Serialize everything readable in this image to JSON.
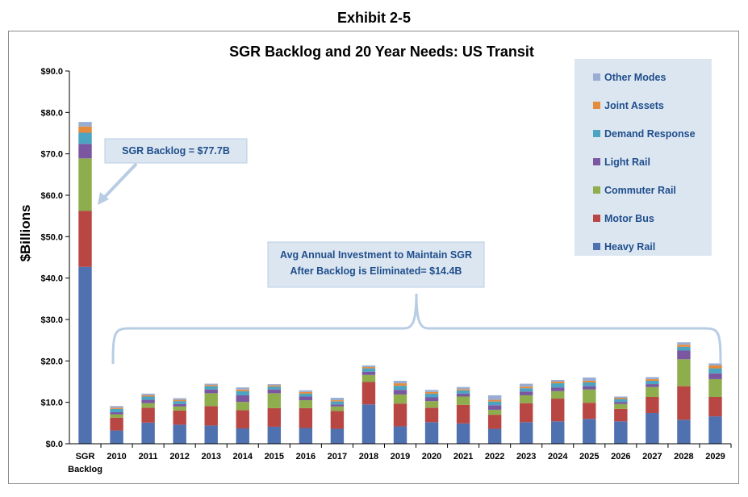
{
  "exhibit_label": "Exhibit 2-5",
  "chart_data": {
    "type": "bar",
    "stacked": true,
    "title": "SGR Backlog and 20 Year Needs: US Transit",
    "ylabel": "$Billions",
    "xlabel": "",
    "ylim": [
      0,
      90
    ],
    "yticks": [
      "$0.0",
      "$10.0",
      "$20.0",
      "$30.0",
      "$40.0",
      "$50.0",
      "$60.0",
      "$70.0",
      "$80.0",
      "$90.0"
    ],
    "grid": false,
    "legend_position": "top-right",
    "categories": [
      "SGR Backlog",
      "2010",
      "2011",
      "2012",
      "2013",
      "2014",
      "2015",
      "2016",
      "2017",
      "2018",
      "2019",
      "2020",
      "2021",
      "2022",
      "2023",
      "2024",
      "2025",
      "2026",
      "2027",
      "2028",
      "2029"
    ],
    "series": [
      {
        "name": "Heavy Rail",
        "color": "#4f71b0",
        "values": [
          42.7,
          3.2,
          5.1,
          4.6,
          4.4,
          3.7,
          4.1,
          3.8,
          3.6,
          9.5,
          4.2,
          5.2,
          4.9,
          3.6,
          5.2,
          5.4,
          6.0,
          5.4,
          7.4,
          5.8,
          6.6
        ]
      },
      {
        "name": "Motor Bus",
        "color": "#b84744",
        "values": [
          13.5,
          3.1,
          3.6,
          3.4,
          4.7,
          4.4,
          4.5,
          4.8,
          4.3,
          5.4,
          5.5,
          3.5,
          4.5,
          3.4,
          4.6,
          5.5,
          3.9,
          3.0,
          3.9,
          8.1,
          4.7
        ]
      },
      {
        "name": "Commuter Rail",
        "color": "#8ead4d",
        "values": [
          12.7,
          0.8,
          1.1,
          1.0,
          3.1,
          2.0,
          3.6,
          1.9,
          1.1,
          1.7,
          2.2,
          1.6,
          2.0,
          1.2,
          1.9,
          1.8,
          3.2,
          1.2,
          2.4,
          6.5,
          4.3
        ]
      },
      {
        "name": "Light Rail",
        "color": "#7a57a0",
        "values": [
          3.5,
          0.5,
          0.8,
          0.6,
          0.9,
          1.6,
          0.9,
          0.9,
          0.5,
          0.8,
          1.1,
          0.9,
          0.7,
          1.1,
          0.9,
          0.9,
          0.8,
          0.5,
          0.7,
          2.1,
          1.4
        ]
      },
      {
        "name": "Demand Response",
        "color": "#4ba4c1",
        "values": [
          2.7,
          0.8,
          0.8,
          0.7,
          0.8,
          1.0,
          0.7,
          0.7,
          0.7,
          0.8,
          1.0,
          0.9,
          0.8,
          0.9,
          0.8,
          1.0,
          0.9,
          0.7,
          0.8,
          0.9,
          1.2
        ]
      },
      {
        "name": "Joint Assets",
        "color": "#e58b3c",
        "values": [
          1.5,
          0.3,
          0.3,
          0.3,
          0.3,
          0.4,
          0.3,
          0.4,
          0.3,
          0.3,
          0.6,
          0.4,
          0.3,
          0.4,
          0.4,
          0.4,
          0.4,
          0.3,
          0.4,
          0.5,
          0.7
        ]
      },
      {
        "name": "Other Modes",
        "color": "#99add3",
        "values": [
          1.1,
          0.4,
          0.4,
          0.4,
          0.3,
          0.5,
          0.3,
          0.4,
          0.6,
          0.4,
          0.6,
          0.5,
          0.5,
          1.1,
          0.7,
          0.4,
          0.8,
          0.3,
          0.5,
          0.6,
          0.5
        ]
      }
    ],
    "annotations": [
      {
        "id": "backlog",
        "lines": [
          "SGR Backlog = $77.7B"
        ]
      },
      {
        "id": "annual",
        "lines": [
          "Avg Annual Investment to Maintain SGR",
          "After Backlog is Eliminated= $14.4B"
        ]
      }
    ]
  }
}
